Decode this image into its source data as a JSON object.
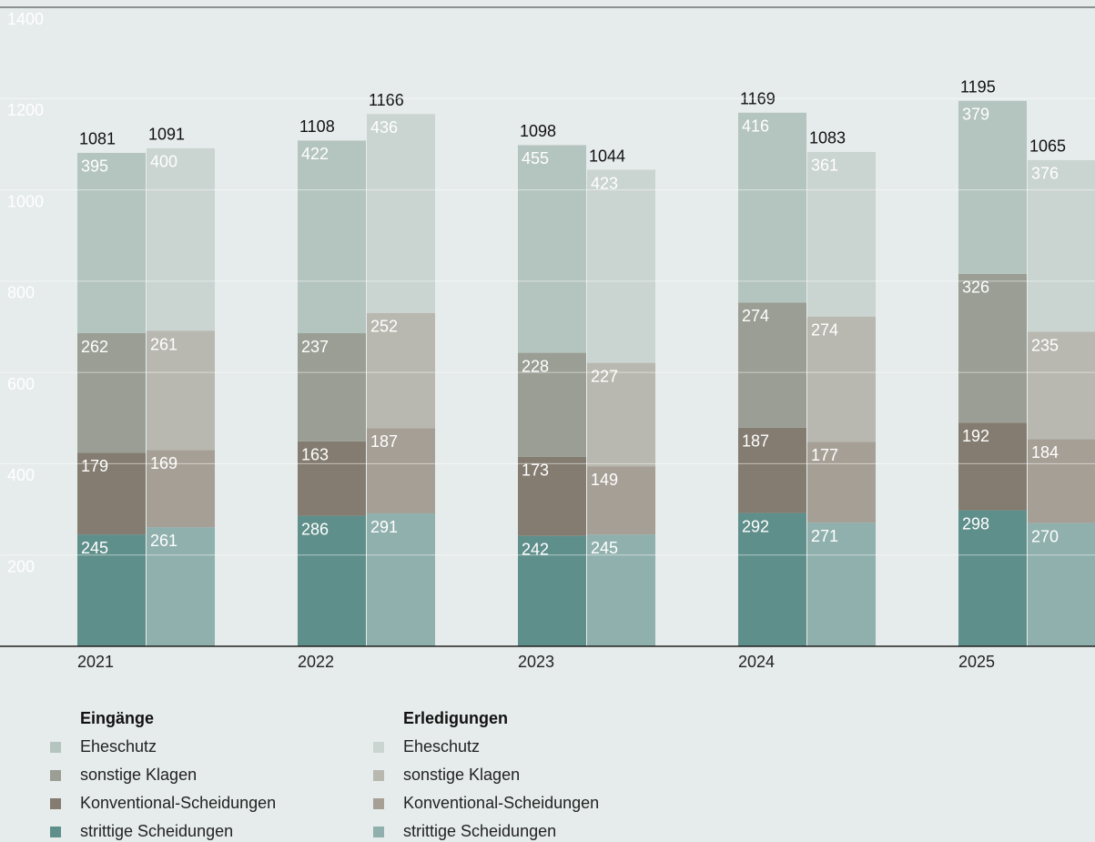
{
  "chart_data": {
    "type": "stacked-grouped-bar",
    "categories": [
      "2021",
      "2022",
      "2023",
      "2024",
      "2025"
    ],
    "ylim": [
      0,
      1400
    ],
    "yticks": [
      200,
      400,
      600,
      800,
      1000,
      1200,
      1400
    ],
    "grid": true,
    "groups": [
      {
        "name": "Eingänge",
        "totals": [
          1081,
          1108,
          1098,
          1169,
          1195
        ],
        "series": [
          {
            "name": "Eheschutz",
            "color": "#b4c4be",
            "values": [
              395,
              422,
              455,
              416,
              379
            ]
          },
          {
            "name": "sonstige Klagen",
            "color": "#9a9e94",
            "values": [
              262,
              237,
              228,
              274,
              326
            ]
          },
          {
            "name": "Konventional-Scheidungen",
            "color": "#847c70",
            "values": [
              179,
              163,
              173,
              187,
              192
            ]
          },
          {
            "name": "strittige Scheidungen",
            "color": "#5f8f8b",
            "values": [
              245,
              286,
              242,
              292,
              298
            ]
          }
        ]
      },
      {
        "name": "Erledigungen",
        "totals": [
          1091,
          1166,
          1044,
          1083,
          1065
        ],
        "series": [
          {
            "name": "Eheschutz",
            "color": "#cad4d0",
            "values": [
              400,
              436,
              423,
              361,
              376
            ]
          },
          {
            "name": "sonstige Klagen",
            "color": "#b8b8b0",
            "values": [
              261,
              252,
              227,
              274,
              235
            ]
          },
          {
            "name": "Konventional-Scheidungen",
            "color": "#a69f96",
            "values": [
              169,
              187,
              149,
              177,
              184
            ]
          },
          {
            "name": "strittige Scheidungen",
            "color": "#8fb0ad",
            "values": [
              261,
              291,
              245,
              271,
              270
            ]
          }
        ]
      }
    ]
  }
}
